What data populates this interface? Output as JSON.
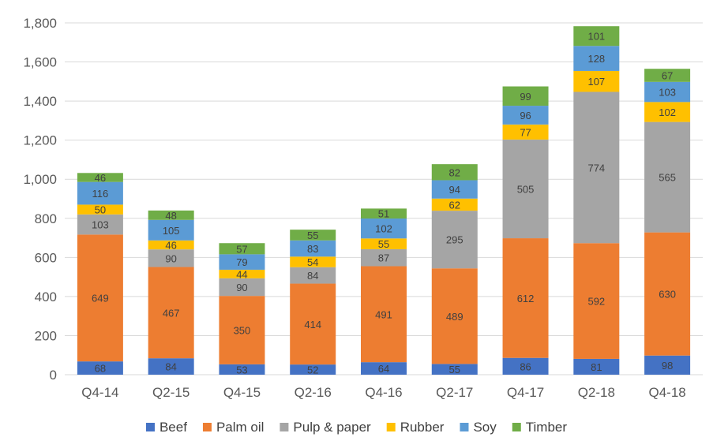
{
  "chart_data": {
    "type": "bar",
    "stacked": true,
    "categories": [
      "Q4-14",
      "Q2-15",
      "Q4-15",
      "Q2-16",
      "Q4-16",
      "Q2-17",
      "Q4-17",
      "Q2-18",
      "Q4-18"
    ],
    "series": [
      {
        "name": "Beef",
        "color": "#4472C4",
        "values": [
          68,
          84,
          53,
          52,
          64,
          55,
          86,
          81,
          98
        ]
      },
      {
        "name": "Palm oil",
        "color": "#ED7D31",
        "values": [
          649,
          467,
          350,
          414,
          491,
          489,
          612,
          592,
          630
        ]
      },
      {
        "name": "Pulp & paper",
        "color": "#A5A5A5",
        "values": [
          103,
          90,
          90,
          84,
          87,
          295,
          505,
          774,
          565
        ]
      },
      {
        "name": "Rubber",
        "color": "#FFC000",
        "values": [
          50,
          46,
          44,
          54,
          55,
          62,
          77,
          107,
          102
        ]
      },
      {
        "name": "Soy",
        "color": "#5B9BD5",
        "values": [
          116,
          105,
          79,
          83,
          102,
          94,
          96,
          128,
          103
        ]
      },
      {
        "name": "Timber",
        "color": "#70AD47",
        "values": [
          46,
          48,
          57,
          55,
          51,
          82,
          99,
          101,
          67
        ]
      }
    ],
    "ylim": [
      0,
      1800
    ],
    "yticks": [
      0,
      200,
      400,
      600,
      800,
      1000,
      1200,
      1400,
      1600,
      1800
    ],
    "ytick_labels": [
      "0",
      "200",
      "400",
      "600",
      "800",
      "1,000",
      "1,200",
      "1,400",
      "1,600",
      "1,800"
    ],
    "grid": true,
    "legend_position": "bottom"
  }
}
